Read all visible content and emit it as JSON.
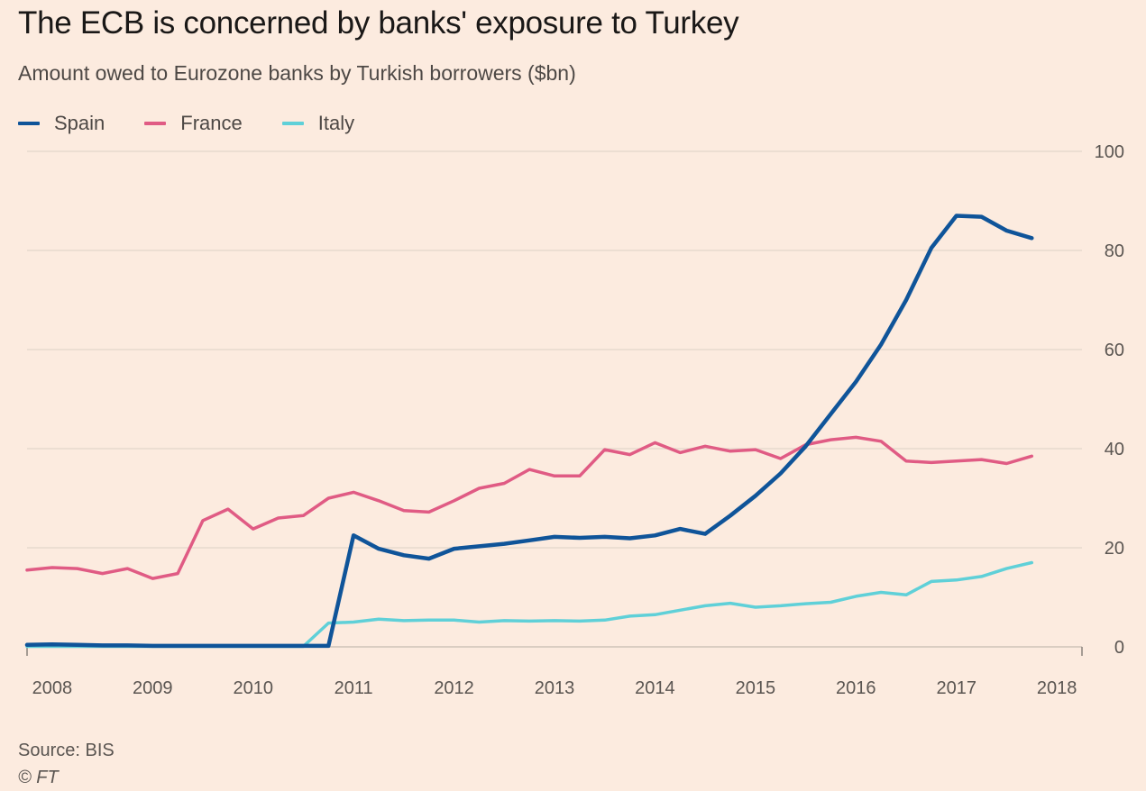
{
  "title": "The ECB is concerned by banks' exposure to Turkey",
  "subtitle": "Amount owed to Eurozone banks by Turkish borrowers ($bn)",
  "source": "Source: BIS",
  "copyright": "© FT",
  "colors": {
    "background": "#fcebdf",
    "gridline": "#e6d9ce",
    "Spain": "#0f5499",
    "France": "#e05b84",
    "Italy": "#5fd0d8"
  },
  "chart_data": {
    "type": "line",
    "title": "The ECB is concerned by banks' exposure to Turkey",
    "subtitle": "Amount owed to Eurozone banks by Turkish borrowers ($bn)",
    "ylim": [
      0,
      100
    ],
    "yticks": [
      0,
      20,
      40,
      60,
      80,
      100
    ],
    "xlim": [
      2007.75,
      2018.25
    ],
    "xticks": [
      {
        "label": "2008",
        "value": 2008
      },
      {
        "label": "2009",
        "value": 2009
      },
      {
        "label": "2010",
        "value": 2010
      },
      {
        "label": "2011",
        "value": 2011
      },
      {
        "label": "2012",
        "value": 2012
      },
      {
        "label": "2013",
        "value": 2013
      },
      {
        "label": "2014",
        "value": 2014
      },
      {
        "label": "2015",
        "value": 2015
      },
      {
        "label": "2016",
        "value": 2016
      },
      {
        "label": "2017",
        "value": 2017
      },
      {
        "label": "2018",
        "value": 2018
      }
    ],
    "y_axis_position": "right",
    "grid": true,
    "legend_position": "top-left",
    "series": [
      {
        "name": "Spain",
        "color": "#0f5499",
        "x": [
          2007.75,
          2008.0,
          2008.25,
          2008.5,
          2008.75,
          2009.0,
          2009.25,
          2009.5,
          2009.75,
          2010.0,
          2010.25,
          2010.5,
          2010.75,
          2011.0,
          2011.25,
          2011.5,
          2011.75,
          2012.0,
          2012.25,
          2012.5,
          2012.75,
          2013.0,
          2013.25,
          2013.5,
          2013.75,
          2014.0,
          2014.25,
          2014.5,
          2014.75,
          2015.0,
          2015.25,
          2015.5,
          2015.75,
          2016.0,
          2016.25,
          2016.5,
          2016.75,
          2017.0,
          2017.25,
          2017.5,
          2017.75,
          2018.0,
          2018.25
        ],
        "values": [
          0.4,
          0.5,
          0.4,
          0.3,
          0.3,
          0.2,
          0.2,
          0.2,
          0.2,
          0.2,
          0.2,
          0.2,
          0.2,
          22.5,
          19.8,
          18.5,
          17.8,
          19.8,
          20.3,
          20.8,
          21.5,
          22.2,
          22.0,
          22.2,
          21.9,
          22.5,
          23.8,
          22.8,
          26.5,
          30.5,
          35.0,
          40.5,
          47.0,
          53.5,
          61.0,
          70.0,
          80.5,
          87.0,
          86.8,
          84.0,
          82.5,
          null,
          null
        ]
      },
      {
        "name": "France",
        "color": "#e05b84",
        "x": [
          2007.75,
          2008.0,
          2008.25,
          2008.5,
          2008.75,
          2009.0,
          2009.25,
          2009.5,
          2009.75,
          2010.0,
          2010.25,
          2010.5,
          2010.75,
          2011.0,
          2011.25,
          2011.5,
          2011.75,
          2012.0,
          2012.25,
          2012.5,
          2012.75,
          2013.0,
          2013.25,
          2013.5,
          2013.75,
          2014.0,
          2014.25,
          2014.5,
          2014.75,
          2015.0,
          2015.25,
          2015.5,
          2015.75,
          2016.0,
          2016.25,
          2016.5,
          2016.75,
          2017.0,
          2017.25,
          2017.5,
          2017.75,
          2018.0,
          2018.25
        ],
        "values": [
          15.5,
          16.0,
          15.8,
          14.8,
          15.8,
          13.8,
          14.8,
          25.5,
          27.8,
          23.8,
          26.0,
          26.5,
          30.0,
          31.2,
          29.5,
          27.5,
          27.2,
          29.5,
          32.0,
          33.0,
          35.8,
          34.5,
          34.5,
          39.8,
          38.8,
          41.2,
          39.2,
          40.5,
          39.5,
          39.8,
          38.0,
          40.8,
          41.8,
          42.3,
          41.5,
          37.5,
          37.2,
          37.5,
          37.8,
          37.0,
          38.5,
          null,
          null
        ]
      },
      {
        "name": "Italy",
        "color": "#5fd0d8",
        "x": [
          2007.75,
          2008.0,
          2008.25,
          2008.5,
          2008.75,
          2009.0,
          2009.25,
          2009.5,
          2009.75,
          2010.0,
          2010.25,
          2010.5,
          2010.75,
          2011.0,
          2011.25,
          2011.5,
          2011.75,
          2012.0,
          2012.25,
          2012.5,
          2012.75,
          2013.0,
          2013.25,
          2013.5,
          2013.75,
          2014.0,
          2014.25,
          2014.5,
          2014.75,
          2015.0,
          2015.25,
          2015.5,
          2015.75,
          2016.0,
          2016.25,
          2016.5,
          2016.75,
          2017.0,
          2017.25,
          2017.5,
          2017.75,
          2018.0,
          2018.25
        ],
        "values": [
          0.1,
          0.1,
          0.1,
          0.1,
          0.1,
          0.1,
          0.1,
          0.1,
          0.1,
          0.1,
          0.1,
          0.1,
          4.8,
          5.0,
          5.6,
          5.3,
          5.4,
          5.4,
          5.0,
          5.3,
          5.2,
          5.3,
          5.2,
          5.4,
          6.2,
          6.5,
          7.4,
          8.3,
          8.8,
          8.0,
          8.3,
          8.7,
          9.0,
          10.2,
          11.0,
          10.5,
          13.2,
          13.5,
          14.2,
          15.8,
          17.0,
          null,
          null
        ]
      }
    ]
  }
}
